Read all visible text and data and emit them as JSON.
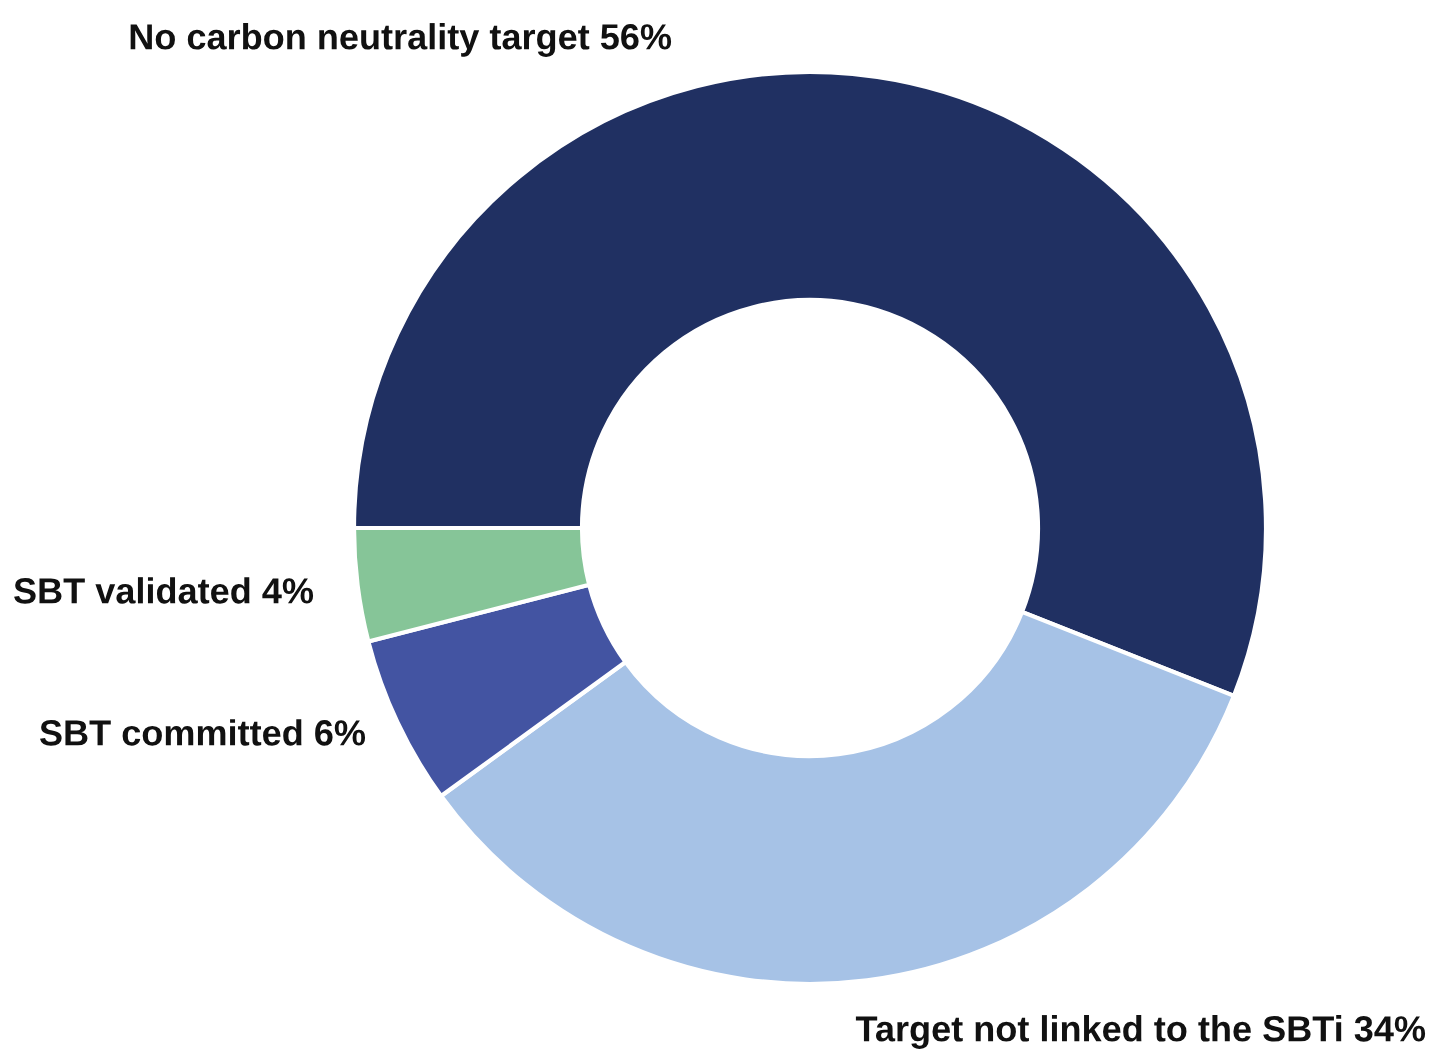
{
  "chart_data": {
    "type": "donut",
    "categories": [
      "No carbon neutrality target",
      "Target not linked to the SBTi",
      "SBT committed",
      "SBT validated"
    ],
    "values": [
      56,
      34,
      6,
      4
    ],
    "value_labels": [
      "56%",
      "34%",
      "6%",
      "4%"
    ],
    "colors": [
      "#203062",
      "#a6c2e6",
      "#4354a2",
      "#86c598"
    ],
    "legend": false
  }
}
